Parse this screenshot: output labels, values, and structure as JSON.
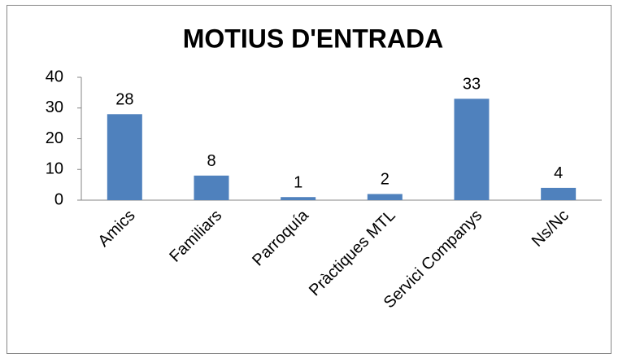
{
  "chart_data": {
    "type": "bar",
    "title": "MOTIUS D'ENTRADA",
    "categories": [
      "Amics",
      "Familiars",
      "Parroquía",
      "Pràctiques MTL",
      "Servici Companys",
      "Ns/Nc"
    ],
    "values": [
      28,
      8,
      1,
      2,
      33,
      4
    ],
    "color": "#4f81bd",
    "ylim": [
      0,
      40
    ],
    "yticks": [
      0,
      10,
      20,
      30,
      40
    ],
    "grid": false
  }
}
